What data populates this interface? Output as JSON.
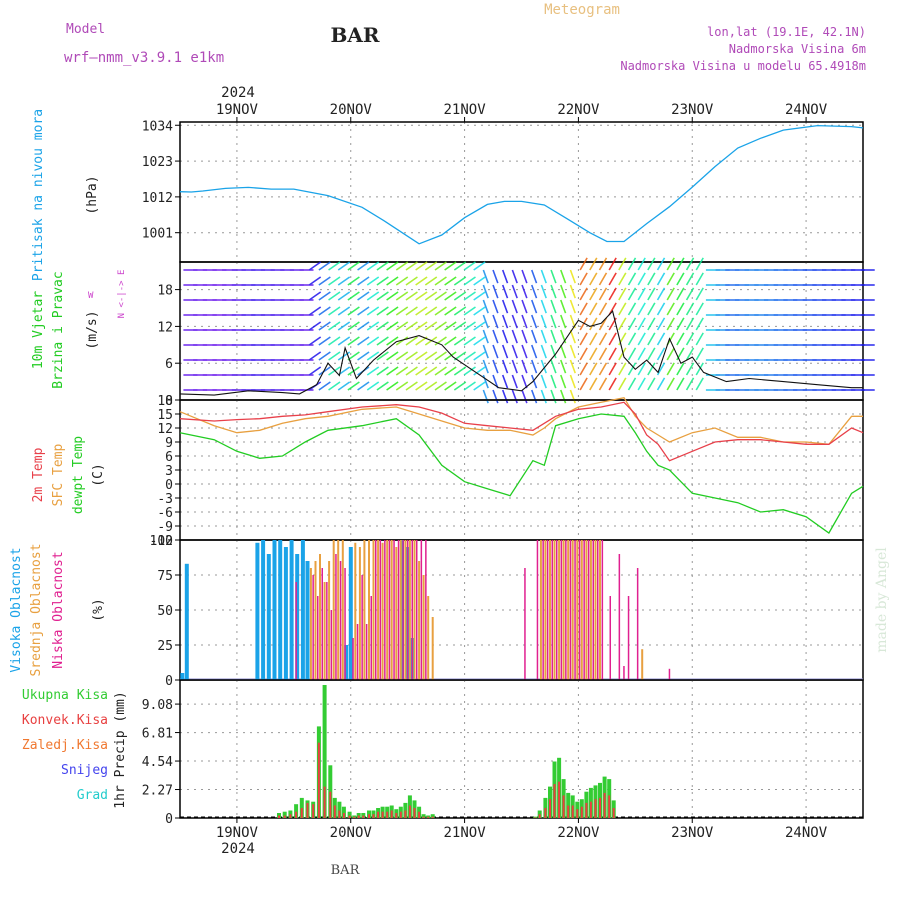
{
  "header": {
    "model_label": "Model",
    "model_name": "wrf—nmm_v3.9.1  e1km",
    "station": "BAR",
    "product": "Meteogram",
    "coords": "lon,lat (19.1E, 42.1N)",
    "elevation": "Nadmorska Visina 6m",
    "model_elevation": "Nadmorska Visina u modelu 65.4918m",
    "year": "2024",
    "bottom_station": "BAR",
    "watermark": "made by Angel"
  },
  "colors": {
    "pressure": "#1aa3e8",
    "temp2m": "#e8404a",
    "sfc_temp": "#e8a040",
    "dewpoint": "#22cc22",
    "high_cloud": "#1aa3e8",
    "mid_cloud": "#e8a040",
    "low_cloud": "#e02090",
    "total_precip": "#33cc33",
    "conv_precip": "#e84040",
    "frozen_precip": "#f07830",
    "snow": "#4444ee",
    "graupel": "#22cccc",
    "wind_label": "#22cc22",
    "wind_sub_label": "#cc44cc"
  },
  "time_axis": {
    "days": [
      "19NOV",
      "20NOV",
      "21NOV",
      "22NOV",
      "23NOV",
      "24NOV"
    ],
    "start": "18NOV 12UTC",
    "end": "24NOV 12UTC"
  },
  "chart_data": [
    {
      "type": "line",
      "panel": "pressure",
      "ylabel": "Pritisak na nivou mora",
      "unit": "(hPa)",
      "yticks": [
        1001,
        1012,
        1023,
        1034
      ],
      "ylim": [
        992,
        1035
      ],
      "x_days": [
        0,
        0.1,
        0.2,
        0.4,
        0.6,
        0.8,
        1.0,
        1.3,
        1.6,
        1.8,
        2.0,
        2.1,
        2.3,
        2.5,
        2.7,
        2.85,
        3.0,
        3.2,
        3.4,
        3.6,
        3.75,
        3.9,
        4.1,
        4.3,
        4.5,
        4.7,
        4.9,
        5.1,
        5.3,
        5.6,
        5.9,
        6.0
      ],
      "series": [
        {
          "values": [
            1013.6,
            1013.5,
            1013.8,
            1014.6,
            1014.9,
            1014.4,
            1014.4,
            1012.4,
            1008.8,
            1004.5,
            999.9,
            997.6,
            1000.3,
            1005.6,
            1009.7,
            1010.6,
            1010.6,
            1009.5,
            1005.3,
            1001.0,
            998.3,
            998.3,
            1003.8,
            1009.0,
            1015.0,
            1021.3,
            1027.0,
            1030.0,
            1032.5,
            1033.9,
            1033.6,
            1033.2
          ]
        }
      ]
    },
    {
      "type": "line",
      "panel": "wind",
      "ylabel": "10m Vjetar",
      "ylabel2": "Brzina i Pravac",
      "unit": "(m/s)",
      "compass": "N <-|-> E",
      "compass_left": "W",
      "yticks": [
        0,
        6,
        12,
        18
      ],
      "ylim": [
        0,
        22.5
      ],
      "x_days": [
        0,
        0.3,
        0.6,
        0.9,
        1.05,
        1.2,
        1.3,
        1.4,
        1.45,
        1.55,
        1.7,
        1.9,
        2.1,
        2.3,
        2.4,
        2.6,
        2.8,
        3.0,
        3.1,
        3.3,
        3.5,
        3.6,
        3.7,
        3.8,
        3.9,
        4.0,
        4.1,
        4.2,
        4.3,
        4.4,
        4.5,
        4.6,
        4.8,
        5.0,
        5.3,
        5.6,
        5.9,
        6.0
      ],
      "series": [
        {
          "name": "wind speed",
          "values": [
            1.0,
            0.8,
            1.5,
            1.2,
            1.0,
            2.5,
            6.0,
            4.0,
            8.5,
            3.5,
            6.5,
            9.5,
            10.5,
            9.0,
            7.0,
            4.5,
            2.0,
            1.5,
            3.0,
            7.5,
            13.0,
            12.0,
            12.5,
            14.5,
            7.0,
            5.0,
            6.5,
            4.5,
            10.0,
            6.0,
            7.0,
            4.5,
            3.0,
            3.5,
            3.0,
            2.5,
            2.0,
            2.0
          ]
        }
      ]
    },
    {
      "type": "line",
      "panel": "temperature",
      "ylabels": [
        "2m Temp",
        "SFC Temp",
        "dewpt Temp"
      ],
      "unit": "(C)",
      "yticks": [
        -12,
        -9,
        -6,
        -3,
        0,
        3,
        6,
        9,
        12,
        15,
        18
      ],
      "ylim": [
        -12,
        18
      ],
      "x_days": [
        0,
        0.3,
        0.5,
        0.7,
        0.9,
        1.1,
        1.3,
        1.6,
        1.9,
        2.1,
        2.3,
        2.5,
        2.7,
        2.9,
        3.1,
        3.2,
        3.3,
        3.5,
        3.7,
        3.9,
        4.0,
        4.1,
        4.2,
        4.3,
        4.5,
        4.7,
        4.9,
        5.1,
        5.3,
        5.5,
        5.7,
        5.9,
        6.0
      ],
      "series": [
        {
          "name": "2m Temp",
          "values": [
            14.0,
            13.5,
            13.8,
            14.0,
            14.5,
            14.8,
            15.5,
            16.5,
            17.0,
            16.5,
            15.2,
            13.0,
            12.5,
            12.0,
            11.5,
            13.0,
            14.5,
            16.0,
            16.5,
            17.5,
            15.0,
            10.5,
            8.5,
            5.0,
            7.0,
            9.0,
            9.5,
            9.5,
            9.0,
            8.5,
            8.5,
            12.0,
            11.0
          ]
        },
        {
          "name": "SFC Temp",
          "values": [
            15.5,
            12.5,
            11.0,
            11.5,
            13.0,
            14.0,
            14.5,
            16.0,
            16.5,
            15.0,
            13.5,
            12.0,
            11.5,
            11.5,
            10.5,
            12.0,
            14.0,
            16.5,
            17.5,
            18.5,
            14.5,
            12.0,
            10.5,
            9.0,
            11.0,
            12.0,
            10.0,
            10.0,
            9.0,
            9.0,
            8.5,
            14.5,
            14.5
          ]
        },
        {
          "name": "dewpt Temp",
          "values": [
            11.0,
            9.5,
            7.0,
            5.5,
            6.0,
            9.0,
            11.5,
            12.5,
            14.0,
            10.5,
            4.0,
            0.5,
            -1.0,
            -2.5,
            5.0,
            4.0,
            12.5,
            14.0,
            15.0,
            14.5,
            11.0,
            7.0,
            4.0,
            3.0,
            -2.0,
            -3.0,
            -4.0,
            -6.0,
            -5.5,
            -7.0,
            -10.5,
            -2.0,
            -0.5
          ]
        }
      ]
    },
    {
      "type": "bar",
      "panel": "cloud",
      "ylabels": [
        "Visoka Oblacnost",
        "Srednja Oblacnost",
        "Niska Oblacnost"
      ],
      "unit": "(%)",
      "yticks": [
        0,
        25,
        50,
        75,
        100
      ],
      "ylim": [
        0,
        100
      ],
      "series": [
        {
          "name": "Visoka Oblacnost",
          "x_days": [
            0.02,
            0.06,
            0.68,
            0.73,
            0.78,
            0.83,
            0.88,
            0.93,
            0.98,
            1.03,
            1.08,
            1.12,
            1.46,
            1.5,
            1.95,
            2.0,
            2.04
          ],
          "values": [
            5,
            83,
            98,
            100,
            90,
            100,
            100,
            95,
            100,
            90,
            100,
            85,
            25,
            95,
            100,
            95,
            30
          ]
        },
        {
          "name": "Srednja Oblacnost",
          "x_days": [
            1.15,
            1.19,
            1.23,
            1.27,
            1.31,
            1.35,
            1.39,
            1.43,
            1.54,
            1.58,
            1.62,
            1.66,
            1.7,
            1.74,
            1.78,
            1.82,
            1.86,
            1.9,
            1.94,
            1.98,
            2.02,
            2.06,
            2.1,
            2.14,
            2.18,
            2.22,
            3.17,
            3.21,
            3.25,
            3.29,
            3.33,
            3.37,
            3.41,
            3.45,
            3.49,
            3.53,
            3.57,
            3.61,
            3.65,
            3.69,
            4.06
          ],
          "values": [
            80,
            85,
            90,
            70,
            85,
            100,
            100,
            100,
            98,
            95,
            100,
            100,
            100,
            100,
            98,
            100,
            100,
            95,
            100,
            100,
            100,
            100,
            85,
            75,
            60,
            45,
            100,
            100,
            100,
            100,
            100,
            100,
            100,
            100,
            100,
            100,
            100,
            100,
            100,
            100,
            22
          ]
        },
        {
          "name": "Niska Oblacnost",
          "x_days": [
            1.02,
            1.17,
            1.21,
            1.25,
            1.29,
            1.33,
            1.37,
            1.41,
            1.45,
            1.52,
            1.56,
            1.6,
            1.64,
            1.68,
            1.72,
            1.76,
            1.8,
            1.84,
            1.88,
            1.92,
            1.96,
            2.0,
            2.04,
            2.08,
            2.12,
            2.16,
            3.03,
            3.14,
            3.19,
            3.23,
            3.27,
            3.31,
            3.35,
            3.39,
            3.43,
            3.47,
            3.51,
            3.55,
            3.59,
            3.63,
            3.67,
            3.71,
            3.78,
            3.86,
            3.9,
            3.94,
            4.02,
            4.3
          ],
          "values": [
            70,
            75,
            60,
            80,
            70,
            50,
            90,
            85,
            80,
            30,
            40,
            75,
            40,
            60,
            100,
            100,
            100,
            100,
            100,
            100,
            100,
            100,
            100,
            100,
            100,
            100,
            80,
            100,
            100,
            100,
            100,
            100,
            100,
            100,
            100,
            100,
            100,
            100,
            100,
            100,
            100,
            100,
            60,
            90,
            10,
            60,
            80,
            8
          ]
        }
      ]
    },
    {
      "type": "bar",
      "panel": "precip",
      "legend": [
        "Ukupna Kisa",
        "Konvek.Kisa",
        "Zaledj.Kisa",
        "Snijeg",
        "Grad"
      ],
      "ylabel": "1hr Precip (mm)",
      "yticks": [
        0,
        2.27,
        4.54,
        6.81,
        9.08
      ],
      "ylim": [
        0,
        11
      ],
      "x_days": [
        0.87,
        0.92,
        0.97,
        1.02,
        1.07,
        1.12,
        1.17,
        1.22,
        1.27,
        1.32,
        1.36,
        1.4,
        1.44,
        1.49,
        1.53,
        1.57,
        1.61,
        1.66,
        1.7,
        1.74,
        1.78,
        1.82,
        1.86,
        1.9,
        1.94,
        1.98,
        2.02,
        2.06,
        2.1,
        2.14,
        2.18,
        2.22,
        3.12,
        3.16,
        3.21,
        3.25,
        3.29,
        3.33,
        3.37,
        3.41,
        3.45,
        3.49,
        3.53,
        3.57,
        3.61,
        3.65,
        3.69,
        3.73,
        3.77,
        3.81
      ],
      "series": [
        {
          "name": "Ukupna Kisa",
          "values": [
            0.4,
            0.5,
            0.6,
            1.1,
            1.6,
            1.4,
            1.3,
            7.3,
            10.6,
            4.2,
            1.6,
            1.3,
            0.9,
            0.5,
            0.2,
            0.4,
            0.4,
            0.6,
            0.6,
            0.8,
            0.9,
            0.9,
            1.0,
            0.7,
            0.9,
            1.2,
            1.8,
            1.4,
            0.9,
            0.3,
            0.2,
            0.3,
            0.1,
            0.6,
            1.6,
            2.5,
            4.5,
            4.8,
            3.1,
            2.0,
            1.8,
            1.3,
            1.5,
            2.1,
            2.4,
            2.6,
            2.8,
            3.3,
            3.1,
            1.4
          ]
        },
        {
          "name": "Konvek.Kisa",
          "values": [
            0.2,
            0.2,
            0.3,
            0.5,
            0.8,
            1.2,
            1.1,
            6.0,
            2.5,
            2.1,
            1.0,
            0.6,
            0.4,
            0.2,
            0.1,
            0.2,
            0.2,
            0.3,
            0.3,
            0.5,
            0.5,
            0.5,
            0.6,
            0.4,
            0.5,
            0.6,
            1.0,
            0.8,
            0.5,
            0.1,
            0.1,
            0.1,
            0.05,
            0.3,
            0.8,
            1.5,
            2.7,
            2.9,
            1.8,
            1.0,
            1.0,
            0.7,
            0.9,
            1.2,
            1.3,
            1.5,
            1.6,
            2.0,
            1.8,
            0.8
          ]
        }
      ]
    }
  ]
}
